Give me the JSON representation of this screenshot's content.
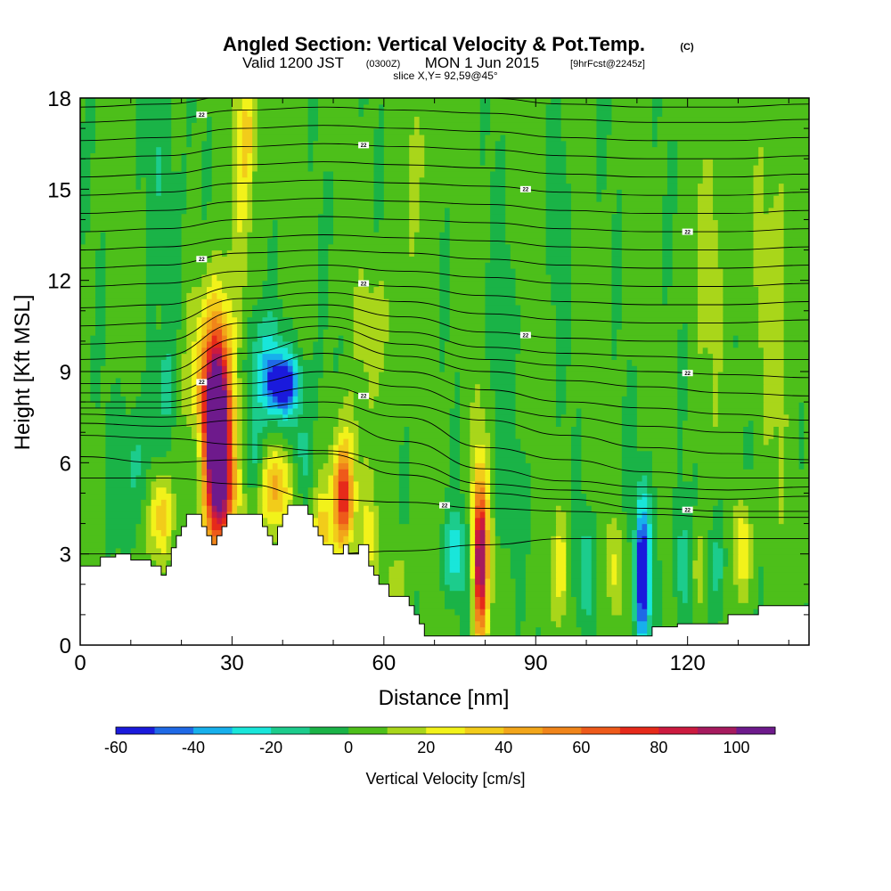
{
  "chart_data": {
    "type": "heatmap",
    "title": "Angled Section: Vertical Velocity & Pot.Temp.",
    "title_unit": "(C)",
    "subtitle": {
      "valid": "Valid 1200 JST",
      "utc": "(0300Z)",
      "date": "MON 1 Jun 2015",
      "forecast": "[9hrFcst@2245z]"
    },
    "slice_info": "slice X,Y= 92,59@45°",
    "xlabel": "Distance [nm]",
    "ylabel": "Height [Kft MSL]",
    "xlim": [
      0,
      144
    ],
    "ylim": [
      0,
      18
    ],
    "x_ticks": [
      0,
      30,
      60,
      90,
      120
    ],
    "y_ticks": [
      0,
      3,
      6,
      9,
      12,
      15,
      18
    ],
    "colorbar": {
      "label": "Vertical Velocity [cm/s]",
      "min": -60,
      "max": 110,
      "step": 10,
      "tick_labels": [
        -60,
        -40,
        -20,
        0,
        20,
        40,
        60,
        80,
        100
      ],
      "colors": [
        "#1a1adc",
        "#1f69e6",
        "#17b0ec",
        "#19e6da",
        "#1ccc8c",
        "#1ab347",
        "#4dbf1a",
        "#a9d61a",
        "#f2f21a",
        "#f2cc1a",
        "#f2a61a",
        "#f0851a",
        "#ee5a1a",
        "#e62a1a",
        "#cc1a3f",
        "#a61a5e",
        "#6e1a8c"
      ]
    },
    "background_value": 3,
    "terrain": [
      [
        0,
        2.6
      ],
      [
        4,
        2.6
      ],
      [
        4,
        2.9
      ],
      [
        7,
        2.9
      ],
      [
        7,
        3.0
      ],
      [
        10,
        3.0
      ],
      [
        10,
        2.8
      ],
      [
        14,
        2.8
      ],
      [
        14,
        2.6
      ],
      [
        16,
        2.6
      ],
      [
        16,
        2.3
      ],
      [
        17,
        2.3
      ],
      [
        17,
        2.6
      ],
      [
        18,
        2.6
      ],
      [
        18,
        3.2
      ],
      [
        19,
        3.2
      ],
      [
        19,
        3.6
      ],
      [
        20,
        3.6
      ],
      [
        20,
        3.9
      ],
      [
        21,
        3.9
      ],
      [
        21,
        4.3
      ],
      [
        24,
        4.3
      ],
      [
        24,
        3.9
      ],
      [
        25,
        3.9
      ],
      [
        25,
        3.6
      ],
      [
        26,
        3.6
      ],
      [
        26,
        3.3
      ],
      [
        27,
        3.3
      ],
      [
        27,
        3.6
      ],
      [
        28,
        3.6
      ],
      [
        28,
        3.9
      ],
      [
        29,
        3.9
      ],
      [
        29,
        4.3
      ],
      [
        36,
        4.3
      ],
      [
        36,
        3.9
      ],
      [
        37,
        3.9
      ],
      [
        37,
        3.6
      ],
      [
        38,
        3.6
      ],
      [
        38,
        3.3
      ],
      [
        39,
        3.3
      ],
      [
        39,
        3.9
      ],
      [
        40,
        3.9
      ],
      [
        40,
        4.3
      ],
      [
        41,
        4.3
      ],
      [
        41,
        4.6
      ],
      [
        45,
        4.6
      ],
      [
        45,
        4.3
      ],
      [
        46,
        4.3
      ],
      [
        46,
        3.9
      ],
      [
        47,
        3.9
      ],
      [
        47,
        3.6
      ],
      [
        48,
        3.6
      ],
      [
        48,
        3.3
      ],
      [
        50,
        3.3
      ],
      [
        50,
        3.0
      ],
      [
        52,
        3.0
      ],
      [
        52,
        3.3
      ],
      [
        53,
        3.3
      ],
      [
        53,
        3.0
      ],
      [
        55,
        3.0
      ],
      [
        55,
        3.3
      ],
      [
        57,
        3.3
      ],
      [
        57,
        2.6
      ],
      [
        58,
        2.6
      ],
      [
        58,
        2.3
      ],
      [
        59,
        2.3
      ],
      [
        59,
        2.0
      ],
      [
        61,
        2.0
      ],
      [
        61,
        1.6
      ],
      [
        65,
        1.6
      ],
      [
        65,
        1.3
      ],
      [
        66,
        1.3
      ],
      [
        66,
        1.0
      ],
      [
        67,
        1.0
      ],
      [
        67,
        0.7
      ],
      [
        68,
        0.7
      ],
      [
        68,
        0.3
      ],
      [
        113,
        0.3
      ],
      [
        113,
        0.6
      ],
      [
        118,
        0.6
      ],
      [
        118,
        0.7
      ],
      [
        123,
        0.7
      ],
      [
        123,
        0.7
      ],
      [
        128,
        0.7
      ],
      [
        128,
        1.0
      ],
      [
        134,
        1.0
      ],
      [
        134,
        1.3
      ],
      [
        144,
        1.3
      ]
    ],
    "velocity_features": [
      {
        "x": 27,
        "z": 7.0,
        "sx": 1.6,
        "sz": 2.2,
        "value": 110
      },
      {
        "x": 26.5,
        "z": 7.5,
        "sx": 3.2,
        "sz": 2.6,
        "value": 55
      },
      {
        "x": 40,
        "z": 8.6,
        "sx": 2.2,
        "sz": 0.6,
        "value": -55
      },
      {
        "x": 38,
        "z": 8.5,
        "sx": 5,
        "sz": 1.2,
        "value": -18
      },
      {
        "x": 36,
        "z": 9.8,
        "sx": 2.5,
        "sz": 1.0,
        "value": -14
      },
      {
        "x": 79,
        "z": 2.7,
        "sx": 0.9,
        "sz": 1.6,
        "value": 80
      },
      {
        "x": 79,
        "z": 3.2,
        "sx": 1.4,
        "sz": 2.5,
        "value": 35
      },
      {
        "x": 52,
        "z": 4.8,
        "sx": 1.3,
        "sz": 1.1,
        "value": 55
      },
      {
        "x": 52,
        "z": 5.3,
        "sx": 2,
        "sz": 1.8,
        "value": 25
      },
      {
        "x": 39,
        "z": 5.2,
        "sx": 2.2,
        "sz": 1.0,
        "value": 42
      },
      {
        "x": 16,
        "z": 4.3,
        "sx": 1.6,
        "sz": 1.0,
        "value": 38
      },
      {
        "x": 29,
        "z": 4.8,
        "sx": 1.5,
        "sz": 1.2,
        "value": 35
      },
      {
        "x": 48,
        "z": 3.8,
        "sx": 1.2,
        "sz": 0.9,
        "value": 28
      },
      {
        "x": 33,
        "z": 17,
        "sx": 1.3,
        "sz": 1.3,
        "value": 26
      },
      {
        "x": 32,
        "z": 15,
        "sx": 1.5,
        "sz": 2.0,
        "value": 14
      },
      {
        "x": 23,
        "z": 6.0,
        "sx": 1.3,
        "sz": 1.2,
        "value": -32
      },
      {
        "x": 11,
        "z": 6.0,
        "sx": 3,
        "sz": 1.5,
        "value": -16
      },
      {
        "x": 34,
        "z": 6.3,
        "sx": 1.3,
        "sz": 1.0,
        "value": -22
      },
      {
        "x": 44,
        "z": 6.2,
        "sx": 1.5,
        "sz": 1.0,
        "value": -18
      },
      {
        "x": 74,
        "z": 3.0,
        "sx": 1.7,
        "sz": 1.0,
        "value": -28
      },
      {
        "x": 78,
        "z": 2.2,
        "sx": 1.3,
        "sz": 1.2,
        "value": -14
      },
      {
        "x": 111,
        "z": 2.4,
        "sx": 0.8,
        "sz": 1.5,
        "value": -55
      },
      {
        "x": 112,
        "z": 2.5,
        "sx": 1.6,
        "sz": 2.0,
        "value": -22
      },
      {
        "x": 100,
        "z": 2.6,
        "sx": 1.2,
        "sz": 1.2,
        "value": -20
      },
      {
        "x": 119,
        "z": 2.6,
        "sx": 1.3,
        "sz": 1.3,
        "value": -20
      },
      {
        "x": 126,
        "z": 2.7,
        "sx": 1.2,
        "sz": 1.3,
        "value": -18
      },
      {
        "x": 131,
        "z": 3.2,
        "sx": 1.1,
        "sz": 1.1,
        "value": 32
      },
      {
        "x": 95,
        "z": 2.6,
        "sx": 0.9,
        "sz": 1.1,
        "value": 24
      },
      {
        "x": 106,
        "z": 2.5,
        "sx": 0.9,
        "sz": 1.0,
        "value": 20
      },
      {
        "x": 122,
        "z": 2.6,
        "sx": 0.9,
        "sz": 1.1,
        "value": 18
      },
      {
        "x": 17,
        "z": 8.6,
        "sx": 1.4,
        "sz": 0.8,
        "value": -15
      },
      {
        "x": 19,
        "z": 12,
        "sx": 1.5,
        "sz": 3.0,
        "value": -10
      },
      {
        "x": 16,
        "z": 16,
        "sx": 1.6,
        "sz": 2.0,
        "value": -12
      },
      {
        "x": 95,
        "z": 14,
        "sx": 1.2,
        "sz": 2.5,
        "value": -10
      },
      {
        "x": 83,
        "z": 10,
        "sx": 2,
        "sz": 3.0,
        "value": -8
      },
      {
        "x": 138,
        "z": 12,
        "sx": 3,
        "sz": 4.0,
        "value": 12
      },
      {
        "x": 125,
        "z": 13,
        "sx": 3,
        "sz": 3.0,
        "value": 10
      },
      {
        "x": 67,
        "z": 16,
        "sx": 2,
        "sz": 2.0,
        "value": 8
      },
      {
        "x": 57,
        "z": 3.5,
        "sx": 1.2,
        "sz": 1.0,
        "value": 22
      },
      {
        "x": 63,
        "z": 2.0,
        "sx": 1.2,
        "sz": 1.0,
        "value": 16
      },
      {
        "x": 84,
        "z": 4.5,
        "sx": 2.5,
        "sz": 1.5,
        "value": -6
      },
      {
        "x": 59,
        "z": 10.5,
        "sx": 2.5,
        "sz": 1.5,
        "value": 14
      }
    ],
    "isentropes": [
      {
        "label": "",
        "levels": [
          3.0,
          3.0,
          3.0,
          3.0,
          3.1,
          3.3,
          3.5,
          3.5,
          3.5,
          3.5
        ]
      },
      {
        "label": "22",
        "levels": [
          5.5,
          5.5,
          5.3,
          4.8,
          4.7,
          4.5,
          4.4,
          4.3,
          4.2,
          4.2
        ]
      },
      {
        "label": "22",
        "levels": [
          6.2,
          6.0,
          6.1,
          6.3,
          5.6,
          5.0,
          4.8,
          4.5,
          4.4,
          4.4
        ]
      },
      {
        "label": "",
        "levels": [
          6.9,
          6.8,
          6.6,
          6.4,
          6.0,
          5.3,
          5.1,
          4.9,
          4.8,
          4.9
        ]
      },
      {
        "label": "",
        "levels": [
          7.3,
          7.2,
          7.4,
          7.5,
          6.7,
          5.8,
          5.4,
          5.2,
          5.1,
          5.2
        ]
      },
      {
        "label": "",
        "levels": [
          7.6,
          7.5,
          7.8,
          8.0,
          7.5,
          6.5,
          6.1,
          5.7,
          5.5,
          5.5
        ]
      },
      {
        "label": "22",
        "levels": [
          7.8,
          7.8,
          8.2,
          8.5,
          7.9,
          7.4,
          6.9,
          6.5,
          6.3,
          6.1
        ]
      },
      {
        "label": "",
        "levels": [
          8.0,
          8.0,
          8.6,
          9.0,
          8.5,
          7.8,
          7.5,
          7.2,
          7.0,
          6.8
        ]
      },
      {
        "label": "22",
        "levels": [
          8.3,
          8.3,
          9.0,
          9.6,
          9.0,
          8.4,
          8.0,
          7.8,
          7.6,
          7.4
        ]
      },
      {
        "label": "",
        "levels": [
          8.6,
          8.6,
          9.6,
          10.1,
          9.5,
          9.0,
          8.7,
          8.5,
          8.3,
          8.2
        ]
      },
      {
        "label": "22",
        "levels": [
          9.0,
          9.0,
          10.1,
          10.5,
          9.9,
          9.4,
          9.2,
          9.0,
          8.9,
          8.8
        ]
      },
      {
        "label": "",
        "levels": [
          9.4,
          9.5,
          10.6,
          10.8,
          10.3,
          9.8,
          9.6,
          9.5,
          9.4,
          9.4
        ]
      },
      {
        "label": "22",
        "levels": [
          9.9,
          10.0,
          11.0,
          11.2,
          10.8,
          10.3,
          10.1,
          10.0,
          10.0,
          10.0
        ]
      },
      {
        "label": "",
        "levels": [
          10.5,
          10.6,
          11.4,
          11.6,
          11.3,
          10.9,
          10.7,
          10.6,
          10.6,
          10.7
        ]
      },
      {
        "label": "22",
        "levels": [
          11.1,
          11.2,
          11.8,
          12.0,
          11.8,
          11.5,
          11.3,
          11.2,
          11.2,
          11.3
        ]
      },
      {
        "label": "",
        "levels": [
          11.8,
          11.9,
          12.3,
          12.5,
          12.3,
          12.1,
          11.9,
          11.8,
          11.8,
          11.9
        ]
      },
      {
        "label": "22",
        "levels": [
          12.4,
          12.5,
          12.9,
          13.0,
          12.9,
          12.7,
          12.5,
          12.4,
          12.4,
          12.5
        ]
      },
      {
        "label": "",
        "levels": [
          13.0,
          13.1,
          13.4,
          13.5,
          13.4,
          13.3,
          13.1,
          13.0,
          13.0,
          13.1
        ]
      },
      {
        "label": "22",
        "levels": [
          13.6,
          13.7,
          14.0,
          14.1,
          14.0,
          13.9,
          13.7,
          13.6,
          13.6,
          13.7
        ]
      },
      {
        "label": "",
        "levels": [
          14.2,
          14.3,
          14.6,
          14.7,
          14.6,
          14.5,
          14.3,
          14.2,
          14.2,
          14.3
        ]
      },
      {
        "label": "22",
        "levels": [
          14.8,
          14.9,
          15.2,
          15.3,
          15.2,
          15.1,
          14.9,
          14.8,
          14.8,
          14.9
        ]
      },
      {
        "label": "",
        "levels": [
          15.4,
          15.5,
          15.8,
          15.9,
          15.8,
          15.7,
          15.5,
          15.4,
          15.4,
          15.5
        ]
      },
      {
        "label": "22",
        "levels": [
          16.0,
          16.1,
          16.4,
          16.5,
          16.4,
          16.3,
          16.1,
          16.0,
          16.0,
          16.1
        ]
      },
      {
        "label": "",
        "levels": [
          16.6,
          16.7,
          17.0,
          17.1,
          17.0,
          16.9,
          16.7,
          16.6,
          16.6,
          16.7
        ]
      },
      {
        "label": "22",
        "levels": [
          17.2,
          17.3,
          17.6,
          17.7,
          17.6,
          17.5,
          17.3,
          17.2,
          17.2,
          17.3
        ]
      },
      {
        "label": "",
        "levels": [
          17.7,
          17.8,
          18.1,
          18.2,
          18.1,
          18.0,
          17.8,
          17.7,
          17.7,
          17.8
        ]
      }
    ],
    "isentrope_x": [
      0,
      16,
      32,
      48,
      64,
      80,
      96,
      112,
      128,
      144
    ]
  }
}
